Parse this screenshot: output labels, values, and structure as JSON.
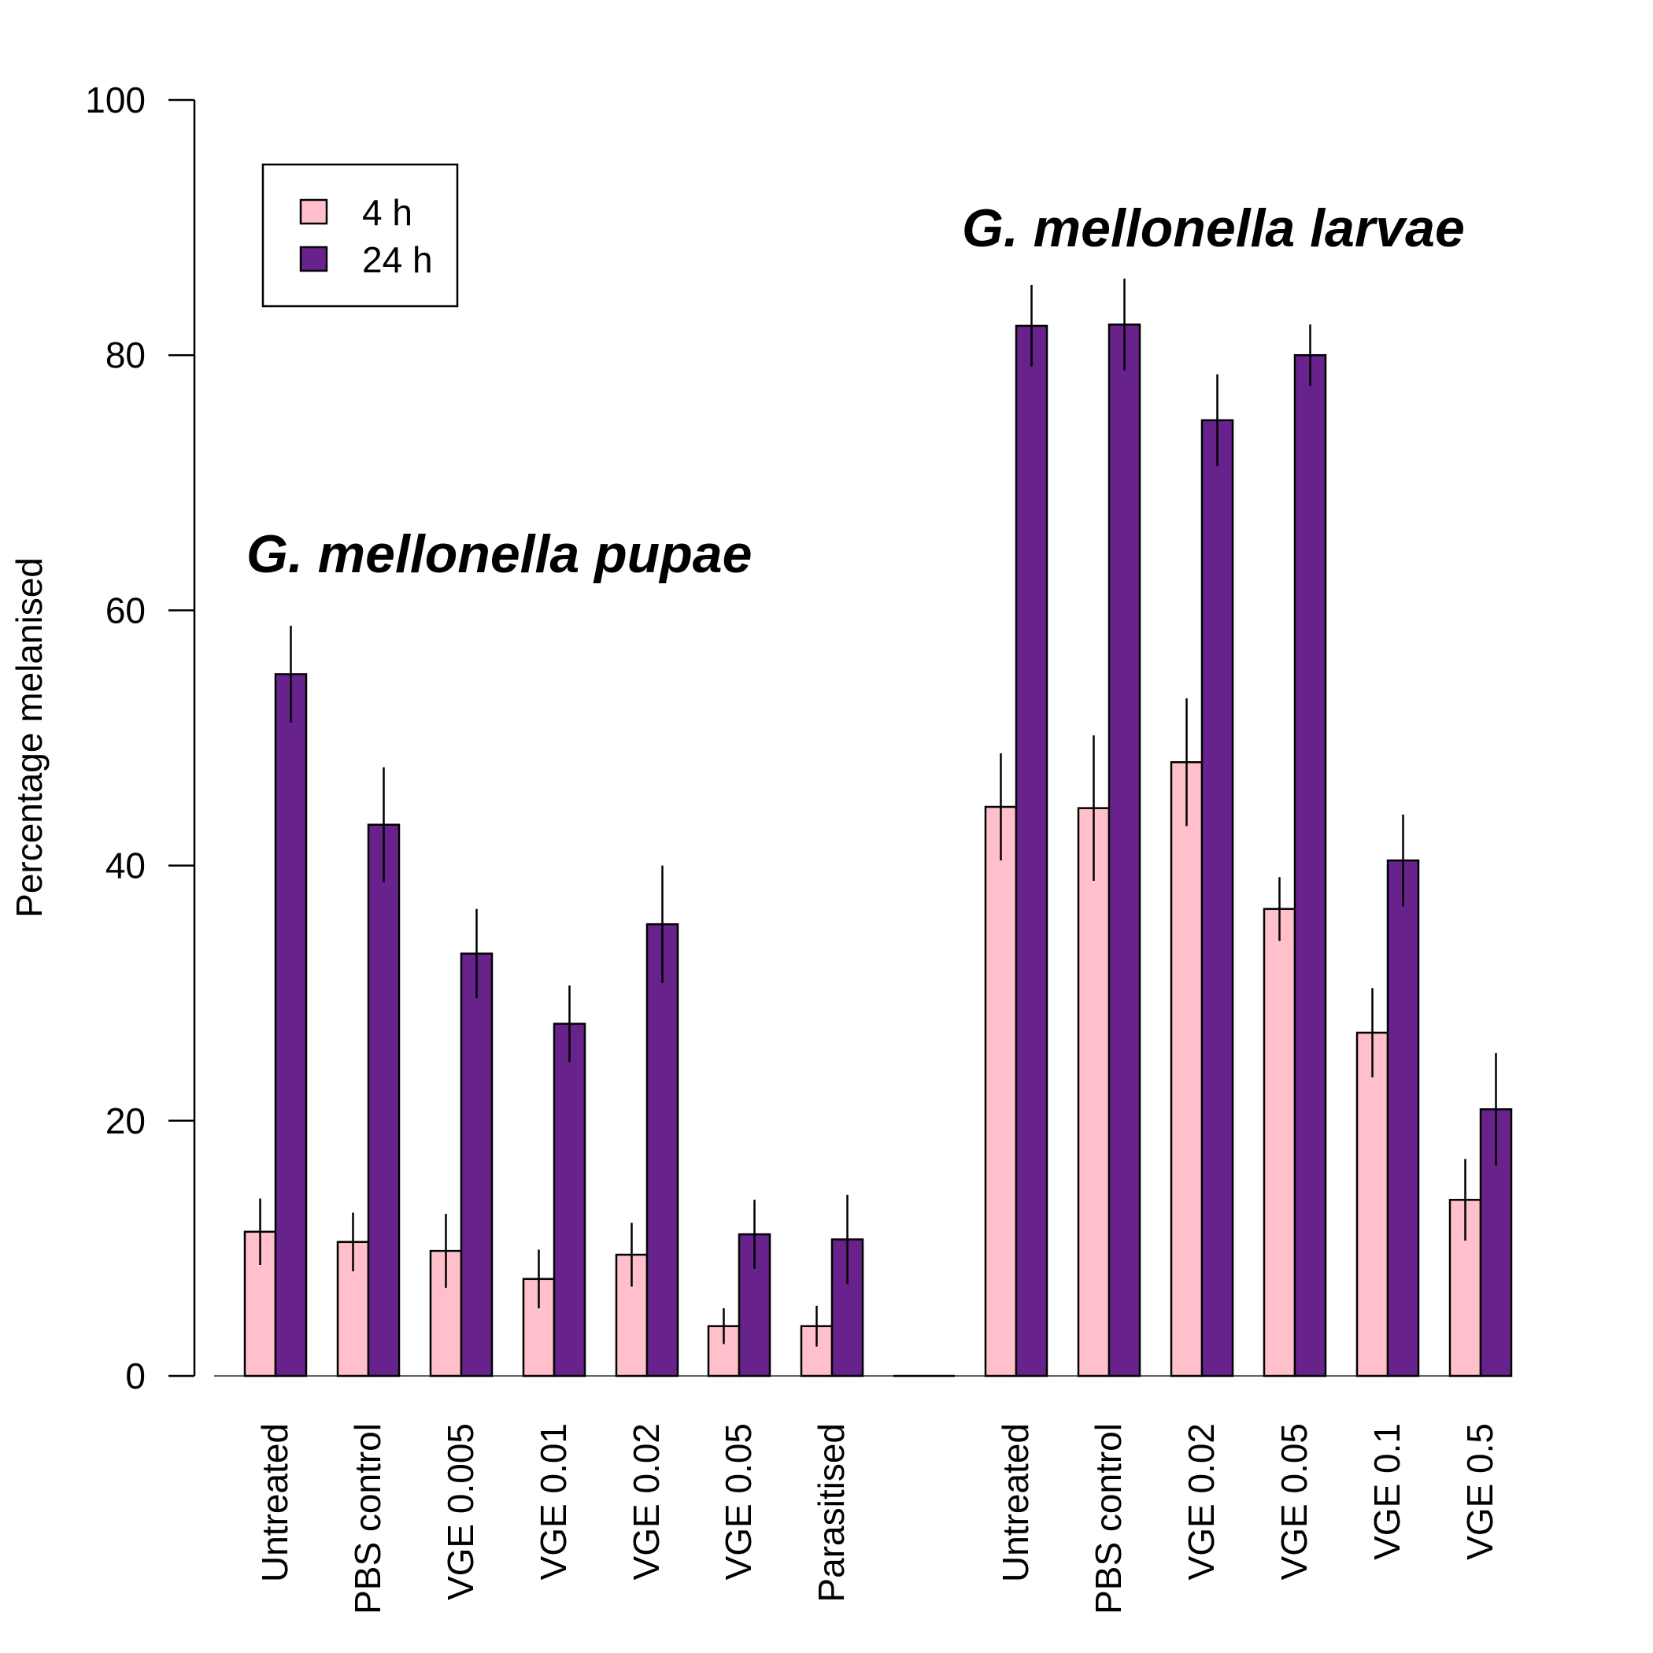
{
  "chart_data": {
    "type": "bar",
    "ylabel": "Percentage melanised",
    "ylim": [
      0,
      100
    ],
    "yticks": [
      0,
      20,
      40,
      60,
      80,
      100
    ],
    "legend": {
      "position": "top-left",
      "entries": [
        {
          "name": "4 h",
          "color": "#FFC0CB"
        },
        {
          "name": "24 h",
          "color": "#68228B"
        }
      ]
    },
    "groups": [
      {
        "title": "G. mellonella pupae",
        "categories": [
          "Untreated",
          "PBS control",
          "VGE 0.005",
          "VGE 0.01",
          "VGE 0.02",
          "VGE 0.05",
          "Parasitised"
        ],
        "series": [
          {
            "name": "4 h",
            "values": [
              11.3,
              10.5,
              9.8,
              7.6,
              9.5,
              3.9,
              3.9
            ],
            "errors": [
              2.6,
              2.3,
              2.9,
              2.3,
              2.5,
              1.4,
              1.6
            ]
          },
          {
            "name": "24 h",
            "values": [
              55.0,
              43.2,
              33.1,
              27.6,
              35.4,
              11.1,
              10.7
            ],
            "errors": [
              3.8,
              4.5,
              3.5,
              3.0,
              4.6,
              2.7,
              3.5
            ]
          }
        ]
      },
      {
        "title": "G. mellonella larvae",
        "categories": [
          "Untreated",
          "PBS control",
          "VGE 0.02",
          "VGE 0.05",
          "VGE 0.1",
          "VGE 0.5"
        ],
        "series": [
          {
            "name": "4 h",
            "values": [
              44.6,
              44.5,
              48.1,
              36.6,
              26.9,
              13.8
            ],
            "errors": [
              4.2,
              5.7,
              5.0,
              2.5,
              3.5,
              3.2
            ]
          },
          {
            "name": "24 h",
            "values": [
              82.3,
              82.4,
              74.9,
              80.0,
              40.4,
              20.9
            ],
            "errors": [
              3.2,
              3.6,
              3.6,
              2.4,
              3.6,
              4.4
            ]
          }
        ]
      }
    ]
  }
}
